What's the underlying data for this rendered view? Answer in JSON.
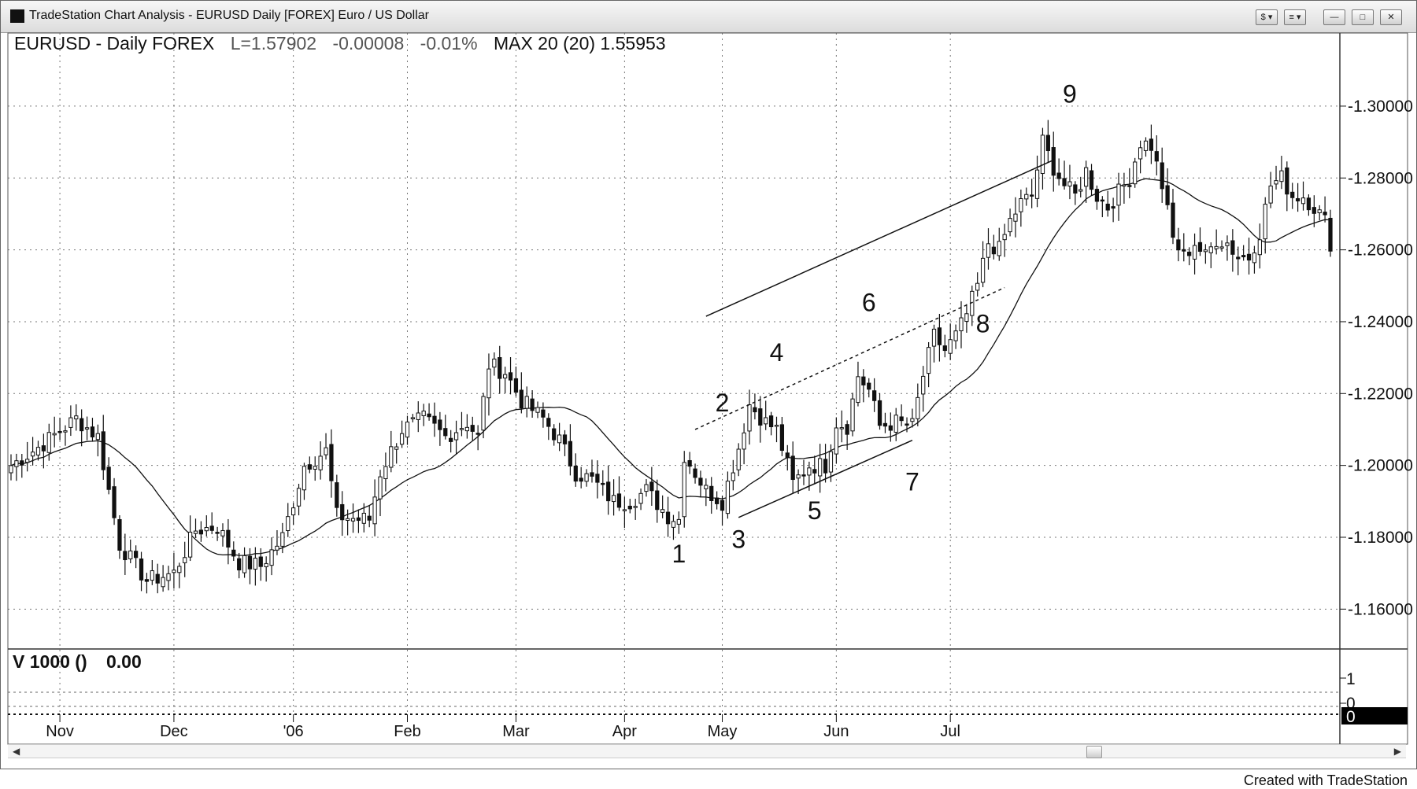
{
  "window": {
    "title": "TradeStation Chart Analysis - EURUSD Daily [FOREX] Euro / US Dollar",
    "buttons": [
      "$ ▾",
      "≡ ▾"
    ]
  },
  "header": {
    "symbol": "EURUSD - Daily FOREX",
    "last": "L=1.57902",
    "change": "-0.00008",
    "change_pct": "-0.01%",
    "indicator": "MAX 20 (20) 1.55953"
  },
  "volume_panel": {
    "label": "V 1000 ()",
    "value": "0.00",
    "axis_labels": [
      "1",
      "0"
    ],
    "current_value": "0"
  },
  "footer": "Created with TradeStation",
  "chart_data": {
    "type": "candlestick",
    "title": "EURUSD - Daily FOREX",
    "ylim": [
      1.15,
      1.3175
    ],
    "y_ticks": [
      "1.30000",
      "1.28000",
      "1.26000",
      "1.24000",
      "1.22000",
      "1.20000",
      "1.18000",
      "1.16000"
    ],
    "x_ticks": [
      "Nov",
      "Dec",
      "'06",
      "Feb",
      "Mar",
      "Apr",
      "May",
      "Jun",
      "Jul"
    ],
    "grid": true,
    "series_anchors": [
      {
        "x": 0,
        "y": 1.2
      },
      {
        "x": 5,
        "y": 1.205
      },
      {
        "x": 12,
        "y": 1.213
      },
      {
        "x": 16,
        "y": 1.208
      },
      {
        "x": 20,
        "y": 1.178
      },
      {
        "x": 25,
        "y": 1.168
      },
      {
        "x": 30,
        "y": 1.17
      },
      {
        "x": 34,
        "y": 1.182
      },
      {
        "x": 38,
        "y": 1.183
      },
      {
        "x": 42,
        "y": 1.173
      },
      {
        "x": 46,
        "y": 1.172
      },
      {
        "x": 50,
        "y": 1.18
      },
      {
        "x": 54,
        "y": 1.2
      },
      {
        "x": 58,
        "y": 1.204
      },
      {
        "x": 60,
        "y": 1.186
      },
      {
        "x": 64,
        "y": 1.185
      },
      {
        "x": 66,
        "y": 1.185
      },
      {
        "x": 68,
        "y": 1.198
      },
      {
        "x": 72,
        "y": 1.21
      },
      {
        "x": 76,
        "y": 1.213
      },
      {
        "x": 80,
        "y": 1.208
      },
      {
        "x": 84,
        "y": 1.212
      },
      {
        "x": 86,
        "y": 1.208
      },
      {
        "x": 88,
        "y": 1.228
      },
      {
        "x": 91,
        "y": 1.226
      },
      {
        "x": 94,
        "y": 1.218
      },
      {
        "x": 98,
        "y": 1.213
      },
      {
        "x": 101,
        "y": 1.207
      },
      {
        "x": 104,
        "y": 1.198
      },
      {
        "x": 107,
        "y": 1.196
      },
      {
        "x": 111,
        "y": 1.19
      },
      {
        "x": 114,
        "y": 1.19
      },
      {
        "x": 117,
        "y": 1.193
      },
      {
        "x": 121,
        "y": 1.186
      },
      {
        "x": 123,
        "y": 1.185
      },
      {
        "x": 124,
        "y": 1.203
      },
      {
        "x": 128,
        "y": 1.193
      },
      {
        "x": 131,
        "y": 1.19
      },
      {
        "x": 134,
        "y": 1.205
      },
      {
        "x": 136,
        "y": 1.217
      },
      {
        "x": 139,
        "y": 1.212
      },
      {
        "x": 141,
        "y": 1.21
      },
      {
        "x": 144,
        "y": 1.195
      },
      {
        "x": 147,
        "y": 1.2
      },
      {
        "x": 150,
        "y": 1.2
      },
      {
        "x": 152,
        "y": 1.212
      },
      {
        "x": 154,
        "y": 1.211
      },
      {
        "x": 156,
        "y": 1.225
      },
      {
        "x": 158,
        "y": 1.221
      },
      {
        "x": 160,
        "y": 1.211
      },
      {
        "x": 163,
        "y": 1.212
      },
      {
        "x": 166,
        "y": 1.211
      },
      {
        "x": 168,
        "y": 1.225
      },
      {
        "x": 170,
        "y": 1.236
      },
      {
        "x": 172,
        "y": 1.232
      },
      {
        "x": 174,
        "y": 1.236
      },
      {
        "x": 176,
        "y": 1.242
      },
      {
        "x": 178,
        "y": 1.25
      },
      {
        "x": 180,
        "y": 1.262
      },
      {
        "x": 182,
        "y": 1.26
      },
      {
        "x": 184,
        "y": 1.268
      },
      {
        "x": 186,
        "y": 1.273
      },
      {
        "x": 188,
        "y": 1.275
      },
      {
        "x": 190,
        "y": 1.29
      },
      {
        "x": 192,
        "y": 1.283
      },
      {
        "x": 194,
        "y": 1.278
      },
      {
        "x": 196,
        "y": 1.275
      },
      {
        "x": 198,
        "y": 1.282
      },
      {
        "x": 200,
        "y": 1.275
      },
      {
        "x": 202,
        "y": 1.272
      },
      {
        "x": 204,
        "y": 1.276
      },
      {
        "x": 206,
        "y": 1.28
      },
      {
        "x": 208,
        "y": 1.29
      },
      {
        "x": 210,
        "y": 1.289
      },
      {
        "x": 212,
        "y": 1.278
      },
      {
        "x": 214,
        "y": 1.263
      },
      {
        "x": 216,
        "y": 1.258
      },
      {
        "x": 218,
        "y": 1.262
      },
      {
        "x": 220,
        "y": 1.258
      },
      {
        "x": 222,
        "y": 1.263
      },
      {
        "x": 224,
        "y": 1.262
      },
      {
        "x": 226,
        "y": 1.258
      },
      {
        "x": 228,
        "y": 1.258
      },
      {
        "x": 230,
        "y": 1.265
      },
      {
        "x": 232,
        "y": 1.278
      },
      {
        "x": 234,
        "y": 1.28
      },
      {
        "x": 236,
        "y": 1.275
      },
      {
        "x": 238,
        "y": 1.275
      },
      {
        "x": 240,
        "y": 1.272
      },
      {
        "x": 242,
        "y": 1.268
      },
      {
        "x": 243,
        "y": 1.262
      }
    ],
    "wave_labels": [
      {
        "text": "1",
        "x": 123,
        "y": 1.173
      },
      {
        "text": "2",
        "x": 131,
        "y": 1.215
      },
      {
        "text": "3",
        "x": 134,
        "y": 1.177
      },
      {
        "text": "4",
        "x": 141,
        "y": 1.229
      },
      {
        "text": "5",
        "x": 148,
        "y": 1.185
      },
      {
        "text": "6",
        "x": 158,
        "y": 1.243
      },
      {
        "text": "7",
        "x": 166,
        "y": 1.193
      },
      {
        "text": "8",
        "x": 179,
        "y": 1.237
      },
      {
        "text": "9",
        "x": 195,
        "y": 1.301
      }
    ],
    "trendlines": [
      {
        "style": "solid",
        "from": {
          "x": 128,
          "y": 1.2415
        },
        "to": {
          "x": 192,
          "y": 1.285
        }
      },
      {
        "style": "solid",
        "from": {
          "x": 134,
          "y": 1.1855
        },
        "to": {
          "x": 166,
          "y": 1.207
        }
      },
      {
        "style": "dashed",
        "from": {
          "x": 126,
          "y": 1.21
        },
        "to": {
          "x": 183,
          "y": 1.2495
        }
      }
    ]
  }
}
